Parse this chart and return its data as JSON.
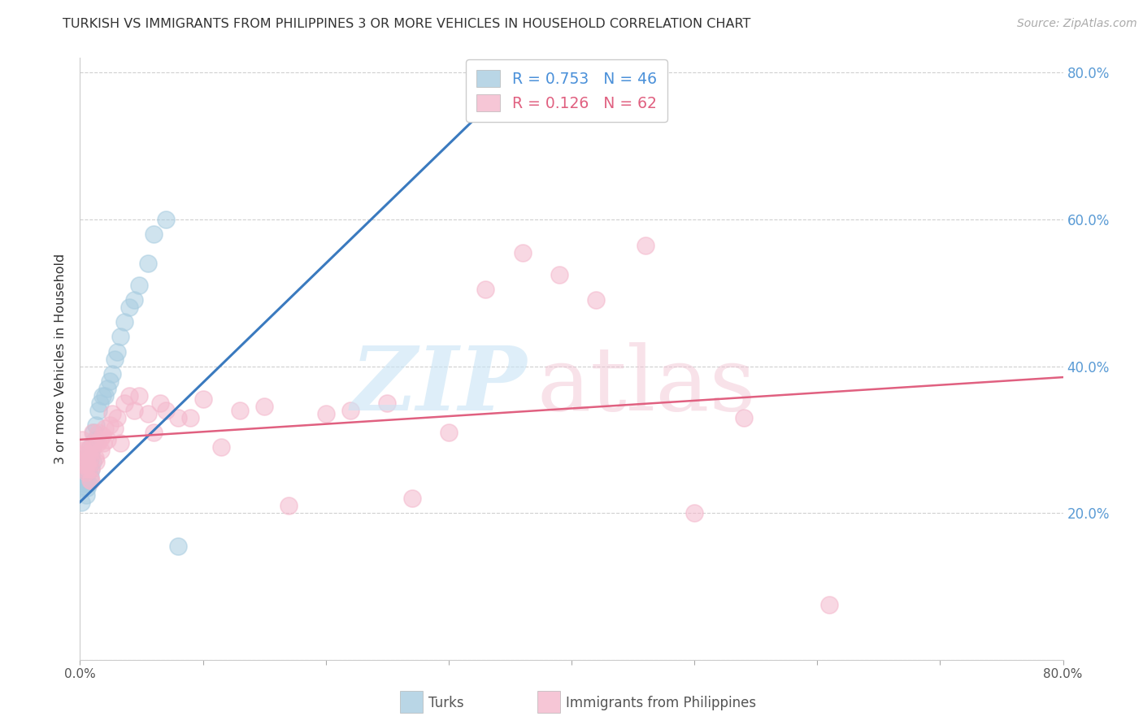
{
  "title": "TURKISH VS IMMIGRANTS FROM PHILIPPINES 3 OR MORE VEHICLES IN HOUSEHOLD CORRELATION CHART",
  "source": "Source: ZipAtlas.com",
  "ylabel": "3 or more Vehicles in Household",
  "xmin": 0.0,
  "xmax": 0.8,
  "ymin": 0.0,
  "ymax": 0.82,
  "turks_color": "#a8cce0",
  "philippines_color": "#f4b8cc",
  "turks_line_color": "#3a7abf",
  "philippines_line_color": "#e06080",
  "R_turks": 0.753,
  "N_turks": 46,
  "R_philippines": 0.126,
  "N_philippines": 62,
  "legend_label_turks": "Turks",
  "legend_label_philippines": "Immigrants from Philippines",
  "background_color": "#ffffff",
  "grid_color": "#d0d0d0",
  "right_axis_color": "#5a9bd5",
  "turks_x": [
    0.001,
    0.002,
    0.002,
    0.003,
    0.003,
    0.004,
    0.004,
    0.004,
    0.005,
    0.005,
    0.005,
    0.006,
    0.006,
    0.006,
    0.007,
    0.007,
    0.007,
    0.008,
    0.008,
    0.008,
    0.009,
    0.009,
    0.01,
    0.01,
    0.011,
    0.012,
    0.013,
    0.015,
    0.016,
    0.018,
    0.02,
    0.022,
    0.024,
    0.026,
    0.028,
    0.03,
    0.033,
    0.036,
    0.04,
    0.044,
    0.048,
    0.055,
    0.06,
    0.07,
    0.08,
    0.33
  ],
  "turks_y": [
    0.215,
    0.235,
    0.25,
    0.245,
    0.26,
    0.24,
    0.255,
    0.27,
    0.225,
    0.245,
    0.265,
    0.235,
    0.255,
    0.27,
    0.24,
    0.26,
    0.28,
    0.25,
    0.27,
    0.29,
    0.26,
    0.28,
    0.27,
    0.29,
    0.31,
    0.3,
    0.32,
    0.34,
    0.35,
    0.36,
    0.36,
    0.37,
    0.38,
    0.39,
    0.41,
    0.42,
    0.44,
    0.46,
    0.48,
    0.49,
    0.51,
    0.54,
    0.58,
    0.6,
    0.155,
    0.78
  ],
  "philippines_x": [
    0.002,
    0.003,
    0.003,
    0.004,
    0.004,
    0.005,
    0.005,
    0.005,
    0.006,
    0.006,
    0.007,
    0.007,
    0.008,
    0.008,
    0.009,
    0.009,
    0.01,
    0.01,
    0.011,
    0.012,
    0.013,
    0.014,
    0.015,
    0.016,
    0.017,
    0.018,
    0.019,
    0.02,
    0.022,
    0.024,
    0.026,
    0.028,
    0.03,
    0.033,
    0.036,
    0.04,
    0.044,
    0.048,
    0.055,
    0.06,
    0.065,
    0.07,
    0.08,
    0.09,
    0.1,
    0.115,
    0.13,
    0.15,
    0.17,
    0.2,
    0.22,
    0.25,
    0.27,
    0.3,
    0.33,
    0.36,
    0.39,
    0.42,
    0.46,
    0.5,
    0.54,
    0.61
  ],
  "philippines_y": [
    0.3,
    0.285,
    0.265,
    0.28,
    0.26,
    0.275,
    0.255,
    0.27,
    0.285,
    0.265,
    0.28,
    0.26,
    0.245,
    0.275,
    0.26,
    0.245,
    0.29,
    0.31,
    0.295,
    0.275,
    0.27,
    0.295,
    0.31,
    0.3,
    0.285,
    0.305,
    0.295,
    0.315,
    0.3,
    0.32,
    0.335,
    0.315,
    0.33,
    0.295,
    0.35,
    0.36,
    0.34,
    0.36,
    0.335,
    0.31,
    0.35,
    0.34,
    0.33,
    0.33,
    0.355,
    0.29,
    0.34,
    0.345,
    0.21,
    0.335,
    0.34,
    0.35,
    0.22,
    0.31,
    0.505,
    0.555,
    0.525,
    0.49,
    0.565,
    0.2,
    0.33,
    0.075
  ],
  "turks_line_x0": 0.0,
  "turks_line_y0": 0.215,
  "turks_line_x1": 0.36,
  "turks_line_y1": 0.8,
  "phil_line_x0": 0.0,
  "phil_line_y0": 0.3,
  "phil_line_x1": 0.8,
  "phil_line_y1": 0.385
}
